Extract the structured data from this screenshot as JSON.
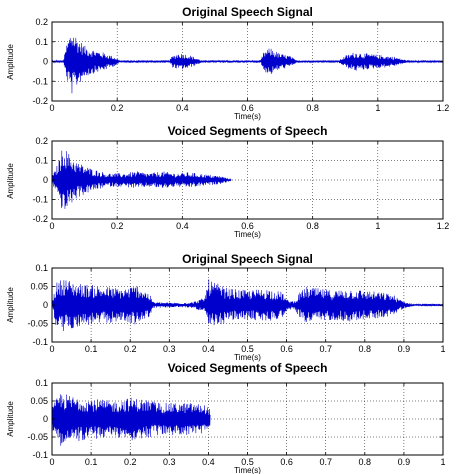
{
  "chart_data": [
    {
      "type": "line",
      "title": "Original Speech Signal",
      "xlabel": "Time(s)",
      "ylabel": "Amplitude",
      "xlim": [
        0,
        1.2
      ],
      "ylim": [
        -0.2,
        0.2
      ],
      "xticks": [
        0,
        0.2,
        0.4,
        0.6,
        0.8,
        1,
        1.2
      ],
      "xtick_labels": [
        "0",
        "0.2",
        "0.4",
        "0.6",
        "0.8",
        "1",
        "1.2"
      ],
      "yticks": [
        -0.2,
        -0.1,
        0,
        0.1,
        0.2
      ],
      "ytick_labels": [
        "-0.2",
        "-0.1",
        "0",
        "0.1",
        "0.2"
      ],
      "grid": true,
      "color": "#0000cc",
      "envelope": [
        [
          0.0,
          0.004
        ],
        [
          0.035,
          0.006
        ],
        [
          0.045,
          0.09
        ],
        [
          0.06,
          0.17
        ],
        [
          0.08,
          0.12
        ],
        [
          0.1,
          0.08
        ],
        [
          0.13,
          0.06
        ],
        [
          0.16,
          0.045
        ],
        [
          0.19,
          0.025
        ],
        [
          0.21,
          0.006
        ],
        [
          0.36,
          0.006
        ],
        [
          0.37,
          0.03
        ],
        [
          0.39,
          0.045
        ],
        [
          0.42,
          0.035
        ],
        [
          0.44,
          0.02
        ],
        [
          0.46,
          0.006
        ],
        [
          0.64,
          0.006
        ],
        [
          0.65,
          0.05
        ],
        [
          0.67,
          0.07
        ],
        [
          0.7,
          0.04
        ],
        [
          0.73,
          0.03
        ],
        [
          0.75,
          0.006
        ],
        [
          0.88,
          0.006
        ],
        [
          0.9,
          0.03
        ],
        [
          0.93,
          0.05
        ],
        [
          0.97,
          0.04
        ],
        [
          1.0,
          0.035
        ],
        [
          1.05,
          0.025
        ],
        [
          1.08,
          0.01
        ],
        [
          1.1,
          0.005
        ],
        [
          1.2,
          0.004
        ]
      ]
    },
    {
      "type": "line",
      "title": "Voiced Segments of Speech",
      "xlabel": "Time(s)",
      "ylabel": "Amplitude",
      "xlim": [
        0,
        1.2
      ],
      "ylim": [
        -0.2,
        0.2
      ],
      "xticks": [
        0,
        0.2,
        0.4,
        0.6,
        0.8,
        1,
        1.2
      ],
      "xtick_labels": [
        "0",
        "0.2",
        "0.4",
        "0.6",
        "0.8",
        "1",
        "1.2"
      ],
      "yticks": [
        -0.2,
        -0.1,
        0,
        0.1,
        0.2
      ],
      "ytick_labels": [
        "-0.2",
        "-0.1",
        "0",
        "0.1",
        "0.2"
      ],
      "grid": true,
      "color": "#0000cc",
      "envelope": [
        [
          0.0,
          0.02
        ],
        [
          0.01,
          0.05
        ],
        [
          0.025,
          0.12
        ],
        [
          0.035,
          0.19
        ],
        [
          0.05,
          0.14
        ],
        [
          0.08,
          0.09
        ],
        [
          0.12,
          0.06
        ],
        [
          0.17,
          0.035
        ],
        [
          0.22,
          0.035
        ],
        [
          0.26,
          0.045
        ],
        [
          0.3,
          0.035
        ],
        [
          0.34,
          0.045
        ],
        [
          0.38,
          0.035
        ],
        [
          0.42,
          0.04
        ],
        [
          0.47,
          0.03
        ],
        [
          0.52,
          0.02
        ],
        [
          0.55,
          0.004
        ]
      ]
    },
    {
      "type": "line",
      "title": "Original Speech Signal",
      "xlabel": "Time(s)",
      "ylabel": "Amplitude",
      "xlim": [
        0,
        1
      ],
      "ylim": [
        -0.1,
        0.1
      ],
      "xticks": [
        0,
        0.1,
        0.2,
        0.3,
        0.4,
        0.5,
        0.6,
        0.7,
        0.8,
        0.9,
        1
      ],
      "xtick_labels": [
        "0",
        "0.1",
        "0.2",
        "0.3",
        "0.4",
        "0.5",
        "0.6",
        "0.7",
        "0.8",
        "0.9",
        "1"
      ],
      "yticks": [
        -0.1,
        -0.05,
        0,
        0.05,
        0.1
      ],
      "ytick_labels": [
        "-0.1",
        "-0.05",
        "0",
        "0.05",
        "0.1"
      ],
      "grid": true,
      "color": "#0000cc",
      "envelope": [
        [
          0.0,
          0.005
        ],
        [
          0.01,
          0.06
        ],
        [
          0.03,
          0.075
        ],
        [
          0.06,
          0.06
        ],
        [
          0.1,
          0.055
        ],
        [
          0.14,
          0.05
        ],
        [
          0.18,
          0.045
        ],
        [
          0.22,
          0.055
        ],
        [
          0.25,
          0.03
        ],
        [
          0.26,
          0.008
        ],
        [
          0.33,
          0.006
        ],
        [
          0.36,
          0.008
        ],
        [
          0.39,
          0.02
        ],
        [
          0.4,
          0.07
        ],
        [
          0.42,
          0.06
        ],
        [
          0.45,
          0.045
        ],
        [
          0.5,
          0.04
        ],
        [
          0.55,
          0.045
        ],
        [
          0.59,
          0.035
        ],
        [
          0.6,
          0.015
        ],
        [
          0.62,
          0.01
        ],
        [
          0.63,
          0.03
        ],
        [
          0.65,
          0.05
        ],
        [
          0.68,
          0.045
        ],
        [
          0.72,
          0.04
        ],
        [
          0.76,
          0.045
        ],
        [
          0.8,
          0.04
        ],
        [
          0.84,
          0.035
        ],
        [
          0.87,
          0.03
        ],
        [
          0.89,
          0.015
        ],
        [
          0.91,
          0.006
        ],
        [
          0.93,
          0.003
        ],
        [
          1.0,
          0.003
        ]
      ]
    },
    {
      "type": "line",
      "title": "Voiced Segments of Speech",
      "xlabel": "Time(s)",
      "ylabel": "Amplitude",
      "xlim": [
        0,
        1
      ],
      "ylim": [
        -0.1,
        0.1
      ],
      "xticks": [
        0,
        0.1,
        0.2,
        0.3,
        0.4,
        0.5,
        0.6,
        0.7,
        0.8,
        0.9,
        1
      ],
      "xtick_labels": [
        "0",
        "0.1",
        "0.2",
        "0.3",
        "0.4",
        "0.5",
        "0.6",
        "0.7",
        "0.8",
        "0.9",
        "1"
      ],
      "yticks": [
        -0.1,
        -0.05,
        0,
        0.05,
        0.1
      ],
      "ytick_labels": [
        "-0.1",
        "-0.05",
        "0",
        "0.05",
        "0.1"
      ],
      "grid": true,
      "color": "#0000cc",
      "envelope": [
        [
          0.0,
          0.03
        ],
        [
          0.02,
          0.075
        ],
        [
          0.05,
          0.065
        ],
        [
          0.08,
          0.06
        ],
        [
          0.12,
          0.055
        ],
        [
          0.16,
          0.05
        ],
        [
          0.2,
          0.06
        ],
        [
          0.24,
          0.055
        ],
        [
          0.28,
          0.045
        ],
        [
          0.32,
          0.045
        ],
        [
          0.36,
          0.045
        ],
        [
          0.39,
          0.04
        ],
        [
          0.405,
          0.03
        ]
      ]
    }
  ]
}
